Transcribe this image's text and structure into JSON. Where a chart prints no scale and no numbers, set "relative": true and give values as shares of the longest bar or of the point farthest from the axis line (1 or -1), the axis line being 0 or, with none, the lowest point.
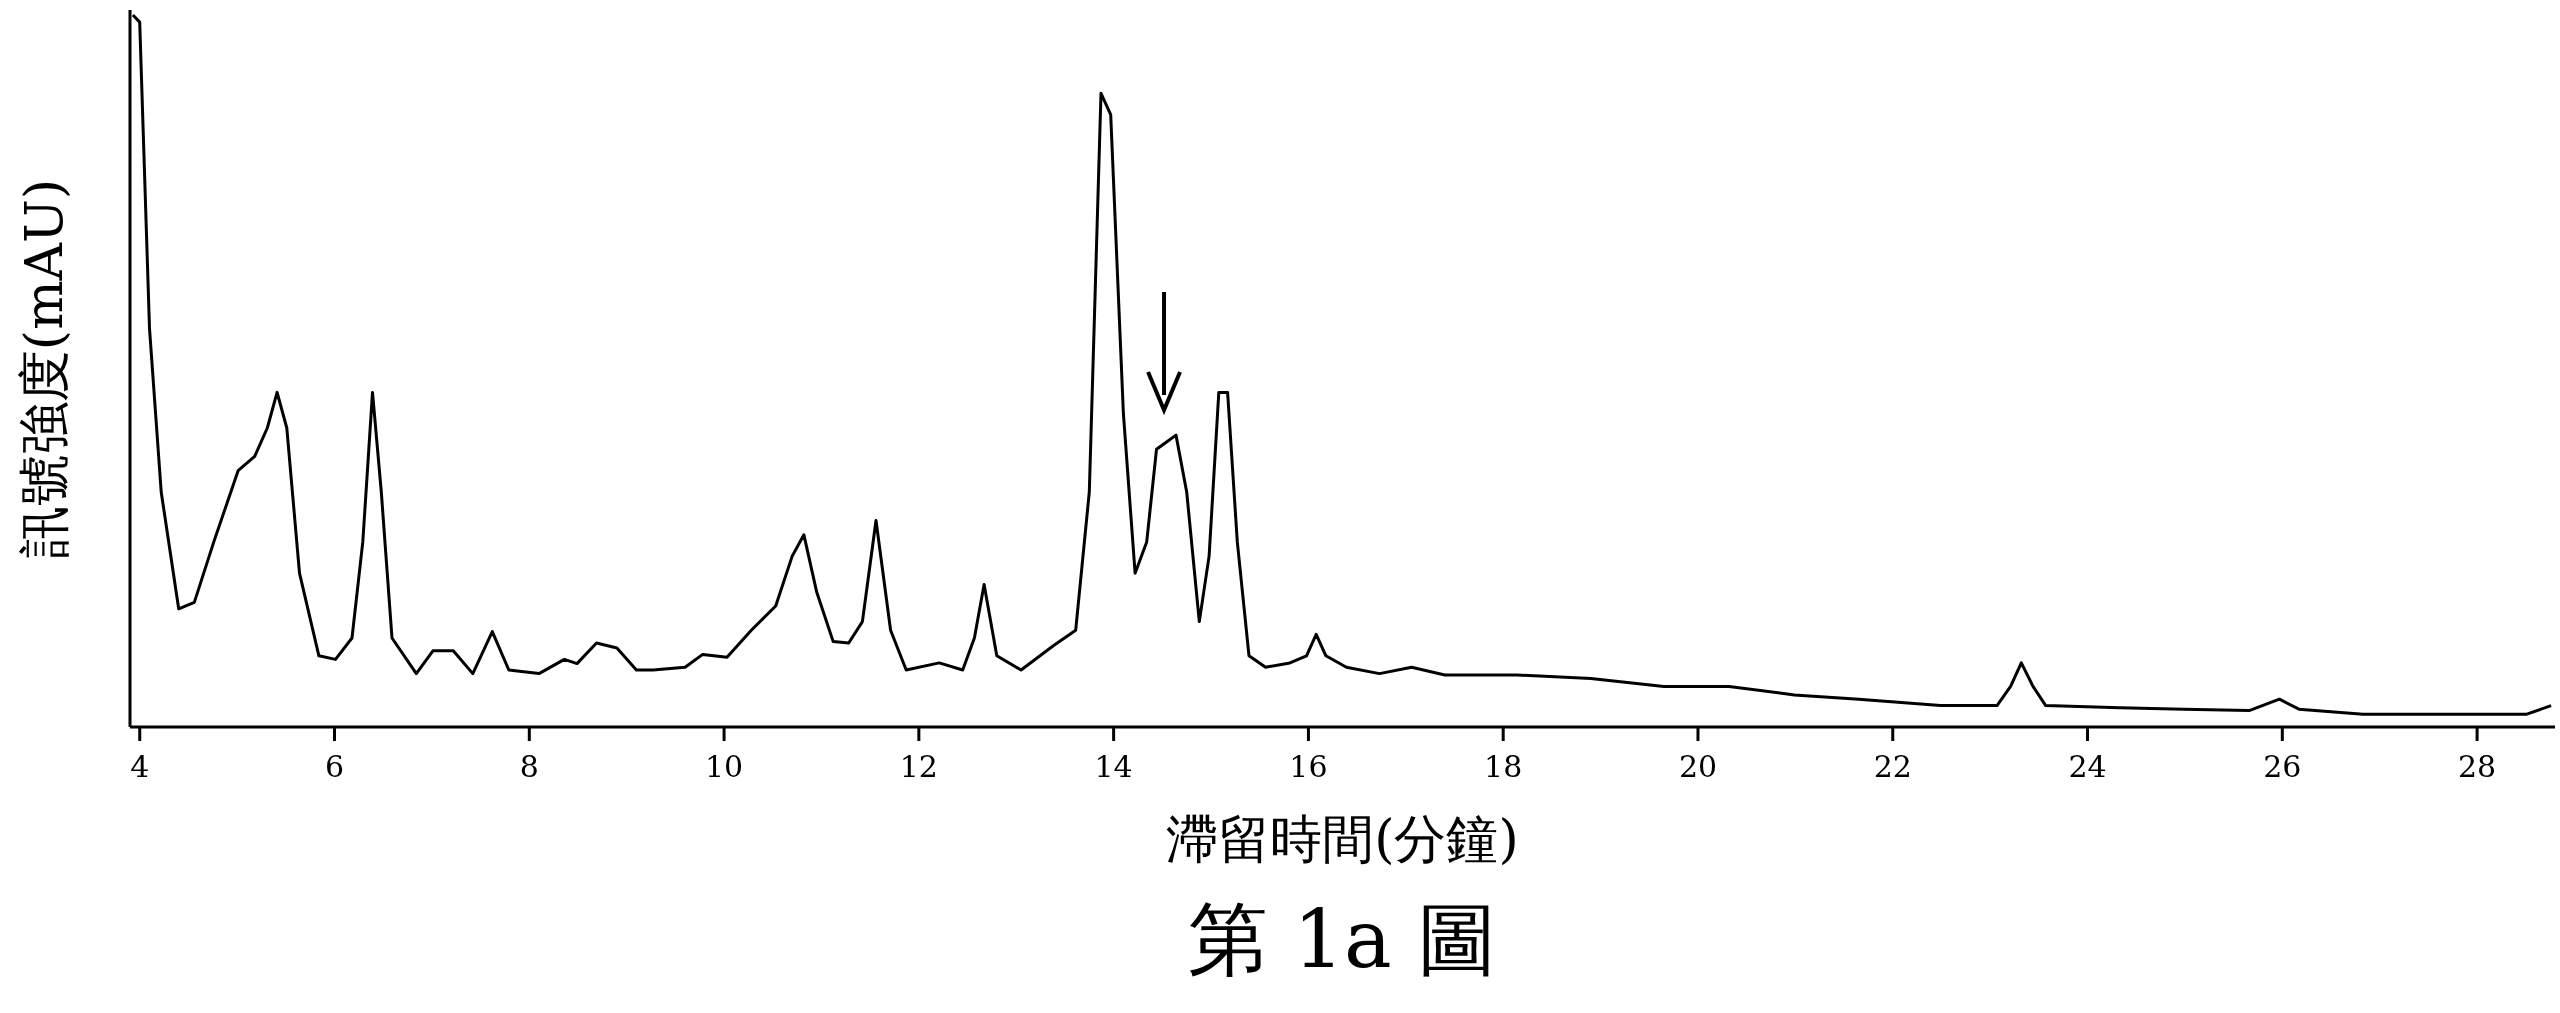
{
  "chart_data": {
    "type": "line",
    "relative": true,
    "title": "第 1a 圖",
    "xlabel": "滯留時間(分鐘)",
    "ylabel": "訊號強度(mAU)",
    "xlim": [
      3.9,
      28.8
    ],
    "xticks": [
      4,
      6,
      8,
      10,
      12,
      14,
      16,
      18,
      20,
      22,
      24,
      26,
      28
    ],
    "series": [
      {
        "color": "#000000",
        "x": [
          3.93,
          4.0,
          4.1,
          4.22,
          4.4,
          4.56,
          4.76,
          5.01,
          5.18,
          5.31,
          5.41,
          5.51,
          5.64,
          5.84,
          6.01,
          6.18,
          6.29,
          6.39,
          6.48,
          6.59,
          6.84,
          7.01,
          7.22,
          7.42,
          7.62,
          7.79,
          8.1,
          8.36,
          8.49,
          8.69,
          8.9,
          9.1,
          9.27,
          9.6,
          9.78,
          10.03,
          10.28,
          10.53,
          10.7,
          10.82,
          10.95,
          11.12,
          11.28,
          11.42,
          11.56,
          11.71,
          11.87,
          12.21,
          12.45,
          12.57,
          12.67,
          12.8,
          13.05,
          13.38,
          13.61,
          13.75,
          13.87,
          13.97,
          14.1,
          14.22,
          14.34,
          14.44,
          14.54,
          14.64,
          14.75,
          14.88,
          14.98,
          15.08,
          15.17,
          15.27,
          15.39,
          15.56,
          15.81,
          15.98,
          16.08,
          16.18,
          16.39,
          16.73,
          17.06,
          17.4,
          18.14,
          18.9,
          19.65,
          20.32,
          20.99,
          21.65,
          22.49,
          23.07,
          23.21,
          23.32,
          23.44,
          23.57,
          24.33,
          24.99,
          25.66,
          25.97,
          26.17,
          26.83,
          27.67,
          28.51,
          28.76
        ],
        "values": [
          1.0,
          0.99,
          0.56,
          0.33,
          0.166,
          0.175,
          0.26,
          0.36,
          0.38,
          0.42,
          0.47,
          0.42,
          0.216,
          0.1,
          0.095,
          0.125,
          0.26,
          0.47,
          0.33,
          0.125,
          0.075,
          0.107,
          0.107,
          0.075,
          0.134,
          0.08,
          0.075,
          0.095,
          0.089,
          0.118,
          0.111,
          0.08,
          0.08,
          0.084,
          0.102,
          0.098,
          0.136,
          0.17,
          0.24,
          0.27,
          0.19,
          0.12,
          0.118,
          0.148,
          0.29,
          0.136,
          0.08,
          0.09,
          0.08,
          0.125,
          0.2,
          0.1,
          0.08,
          0.114,
          0.136,
          0.33,
          0.89,
          0.86,
          0.44,
          0.216,
          0.26,
          0.39,
          0.4,
          0.41,
          0.33,
          0.148,
          0.24,
          0.47,
          0.47,
          0.26,
          0.1,
          0.084,
          0.09,
          0.1,
          0.13,
          0.1,
          0.084,
          0.075,
          0.084,
          0.073,
          0.073,
          0.068,
          0.057,
          0.057,
          0.045,
          0.039,
          0.03,
          0.03,
          0.057,
          0.09,
          0.057,
          0.03,
          0.027,
          0.025,
          0.023,
          0.039,
          0.025,
          0.018,
          0.018,
          0.018,
          0.03
        ]
      }
    ]
  }
}
